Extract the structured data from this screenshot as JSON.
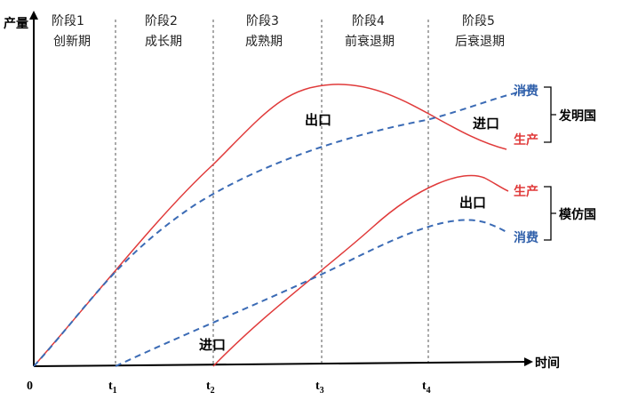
{
  "axes": {
    "y_title": "产量",
    "x_title": "时间",
    "origin": "0"
  },
  "stages": [
    {
      "name": "阶段1",
      "desc": "创新期"
    },
    {
      "name": "阶段2",
      "desc": "成长期"
    },
    {
      "name": "阶段3",
      "desc": "成熟期"
    },
    {
      "name": "阶段4",
      "desc": "前衰退期"
    },
    {
      "name": "阶段5",
      "desc": "后衰退期"
    }
  ],
  "ticks": [
    {
      "main": "t",
      "sub": "1"
    },
    {
      "main": "t",
      "sub": "2"
    },
    {
      "main": "t",
      "sub": "3"
    },
    {
      "main": "t",
      "sub": "4"
    }
  ],
  "flows": {
    "export_inventor": "出口",
    "import_inventor": "进口",
    "export_imitator": "出口",
    "import_imitator": "进口"
  },
  "labels": {
    "inventor_consumption": "消费",
    "inventor_production": "生产",
    "imitator_production": "生产",
    "imitator_consumption": "消费"
  },
  "groups": {
    "inventor": "发明国",
    "imitator": "模仿国"
  },
  "colors": {
    "production": "#e03a3a",
    "consumption": "#3b6bb5",
    "consumption_text": "#2f5faa"
  }
}
